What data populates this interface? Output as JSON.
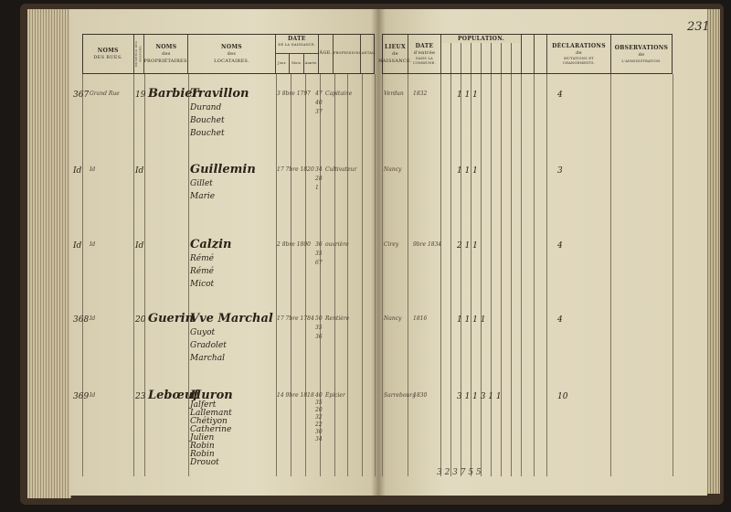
{
  "page_number": "231",
  "left_header": {
    "rues": [
      "NOMS",
      "DES RUES."
    ],
    "numeros": "NUMÉROS DES MAISONS.",
    "proprietaires": [
      "NOMS",
      "des",
      "PROPRIÉTAIRES."
    ],
    "locataires": [
      "NOMS",
      "des",
      "LOCATAIRES."
    ],
    "date_naissance": {
      "title": "DATE",
      "subtitle": "DE LA NAISSANCE.",
      "cols": [
        "Jour.",
        "Mois.",
        "Année."
      ]
    },
    "age": "ÂGE.",
    "profession": "PROFESSION.",
    "cantal": "CANTAL."
  },
  "right_header": {
    "lieux": [
      "LIEUX",
      "de",
      "NAISSANCE."
    ],
    "date_entree": [
      "DATE",
      "d'entrée",
      "DANS LA COMMUNE."
    ],
    "population": "POPULATION.",
    "declarations": [
      "DÉCLARATIONS",
      "de",
      "MUTATIONS ET CHANGEMENTS."
    ],
    "observations": [
      "OBSERVATIONS",
      "de",
      "L'ADMINISTRATION."
    ]
  },
  "entries": [
    {
      "no": "367",
      "rue": "Grand Rue",
      "maison": "19",
      "proprietaire": "Barbier",
      "locataires": [
        "Travillon",
        "Durand",
        "Bouchet",
        "Bouchet"
      ],
      "date": "3  8bre  1797",
      "ages": [
        "47",
        "40",
        "37"
      ],
      "profession": "Capitaine",
      "lieu": "Verdun",
      "entree": "1832",
      "pop": "1  1  1",
      "decl": "4"
    },
    {
      "no": "Id",
      "rue": "Id",
      "maison": "Id",
      "proprietaire": "",
      "locataires": [
        "Guillemin",
        "Gillet",
        "Marie"
      ],
      "date": "17  7bre  1820",
      "ages": [
        "34",
        "28",
        "1"
      ],
      "profession": "Cultivateur",
      "lieu": "Nancy",
      "entree": "",
      "pop": "1  1  1",
      "decl": "3"
    },
    {
      "no": "Id",
      "rue": "Id",
      "maison": "Id",
      "proprietaire": "",
      "locataires": [
        "Calzin",
        "Rémé",
        "Rémé",
        "Micot"
      ],
      "date": "2  8bre  1800",
      "ages": [
        "36",
        "35",
        "67"
      ],
      "profession": "ouvrière",
      "lieu": "Cirey",
      "entree": "9bre 1834",
      "pop": "2  1  1",
      "decl": "4"
    },
    {
      "no": "368",
      "rue": "Id",
      "maison": "20",
      "proprietaire": "Guerin",
      "locataires": [
        "Vve Marchal",
        "Guyot",
        "Gradolet",
        "Marchal"
      ],
      "date": "17  7bre  1784",
      "ages": [
        "50",
        "35",
        "36"
      ],
      "profession": "Rentière",
      "lieu": "Nancy",
      "entree": "1816",
      "pop": "1  1  1  1",
      "decl": "4"
    },
    {
      "no": "369",
      "rue": "Id",
      "maison": "23",
      "proprietaire": "Lebœuf",
      "locataires": [
        "Huron",
        "Jalfert",
        "Lallemant",
        "Chétiyon",
        "Catherine",
        "Julien",
        "Robin",
        "Robin",
        "Drouot"
      ],
      "date": "14  9bre  1818",
      "ages": [
        "40",
        "35",
        "20",
        "32",
        "22",
        "30",
        "34"
      ],
      "profession": "Épicier",
      "lieu": "Sarrebourg",
      "entree": "1830",
      "pop": "3  1  1  3  1  1",
      "decl": "10"
    }
  ],
  "totals": "3  2  3  7  5  5"
}
